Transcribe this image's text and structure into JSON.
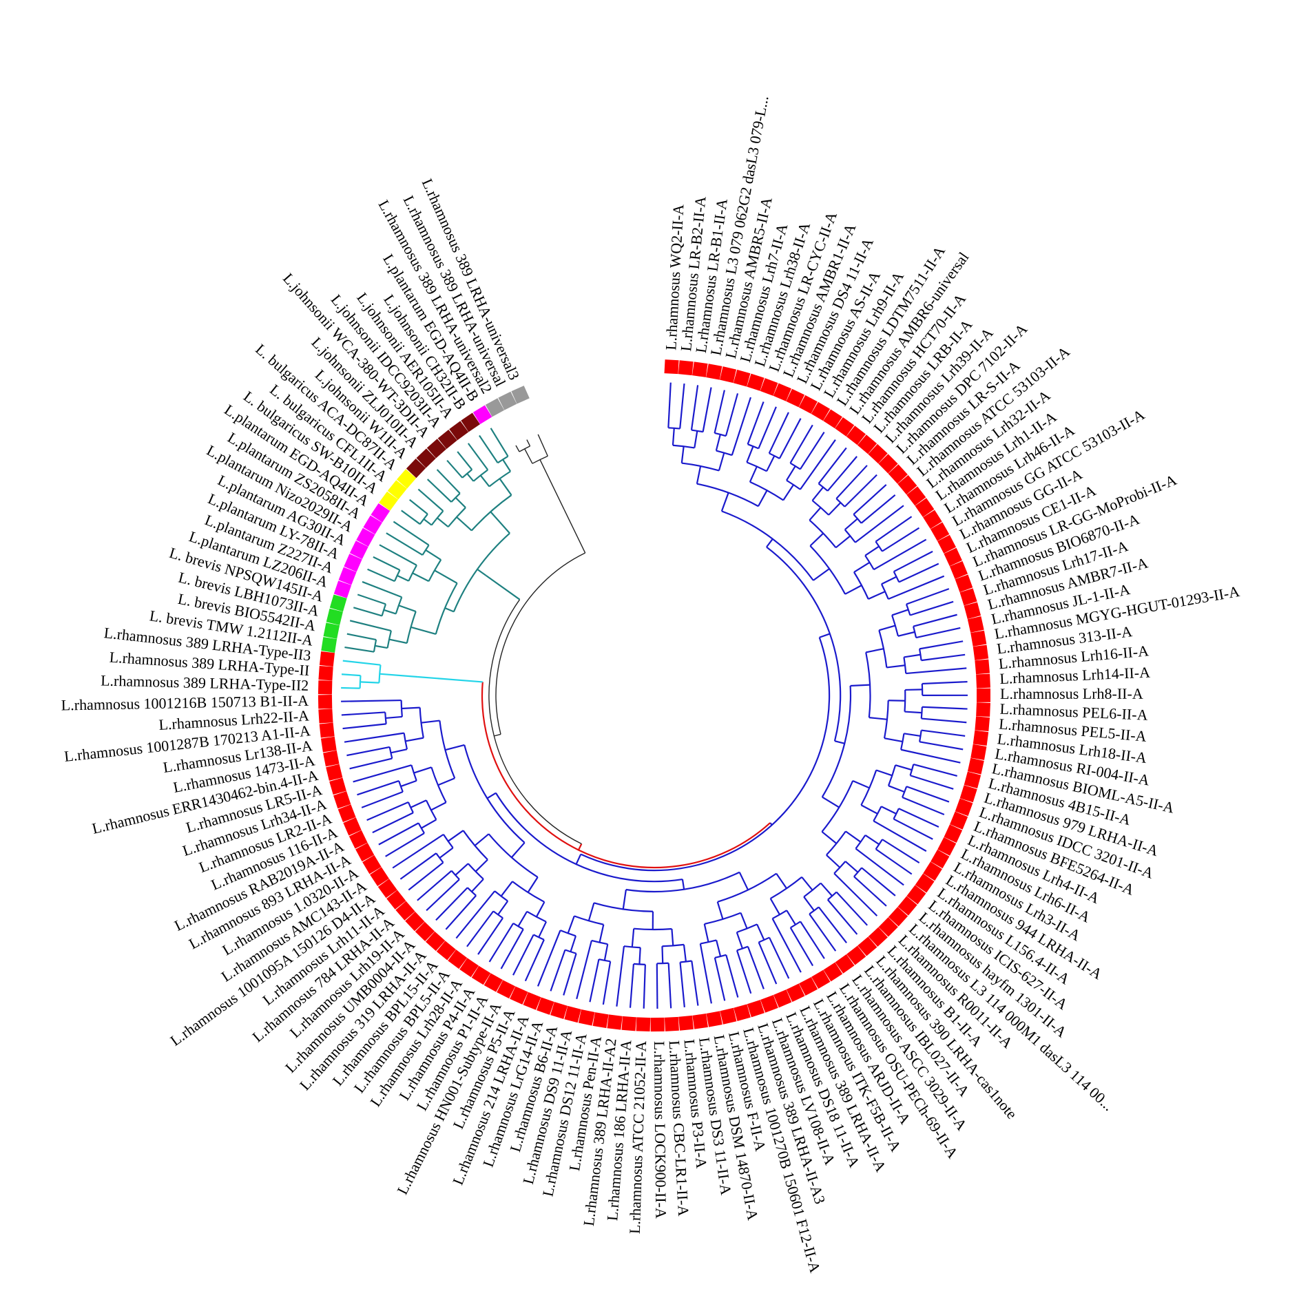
{
  "colors": {
    "rhamnosus_clade": "#1a1acc",
    "outgroup_clade": "#1e8080",
    "type_ii_clade": "#22d4e8",
    "root_segment": "#e01010",
    "universal_clade": "#222222",
    "tip_default": "#ff0000"
  },
  "legend_colors": {
    "rhamnosus": "#ff0000",
    "universal": "#999999",
    "plantarum_egd": "#ff00ff",
    "johnsonii": "#7a0a0a",
    "bulgaricus": "#ffff00",
    "plantarum": "#ff00ff",
    "brevis": "#22dd22"
  },
  "leaves": [
    {
      "label": "L.rhamnosus WQ2-II-A",
      "color": "#ff0000",
      "clade": "main"
    },
    {
      "label": "L.rhamnosus LR-B2-II-A",
      "color": "#ff0000",
      "clade": "main"
    },
    {
      "label": "L.rhamnosus LR-B1-II-A",
      "color": "#ff0000",
      "clade": "main"
    },
    {
      "label": "L.rhamnosus L3 079 062G2 dasL3 079-L...",
      "color": "#ff0000",
      "clade": "main"
    },
    {
      "label": "L.rhamnosus AMBR5-II-A",
      "color": "#ff0000",
      "clade": "main"
    },
    {
      "label": "L.rhamnosus Lrh7-II-A",
      "color": "#ff0000",
      "clade": "main"
    },
    {
      "label": "L.rhamnosus Lrh38-II-A",
      "color": "#ff0000",
      "clade": "main"
    },
    {
      "label": "L.rhamnosus LR-CYC-II-A",
      "color": "#ff0000",
      "clade": "main"
    },
    {
      "label": "L.rhamnosus AMBR1-II-A",
      "color": "#ff0000",
      "clade": "main"
    },
    {
      "label": "L.rhamnosus DS4 11-II-A",
      "color": "#ff0000",
      "clade": "main"
    },
    {
      "label": "L.rhamnosus AS-II-A",
      "color": "#ff0000",
      "clade": "main"
    },
    {
      "label": "L.rhamnosus Lrh9-II-A",
      "color": "#ff0000",
      "clade": "main"
    },
    {
      "label": "L.rhamnosus LDTM7511-II-A",
      "color": "#ff0000",
      "clade": "main"
    },
    {
      "label": "L.rhamnosus AMBR6-universal",
      "color": "#ff0000",
      "clade": "main"
    },
    {
      "label": "L.rhamnosus HCT70-II-A",
      "color": "#ff0000",
      "clade": "main"
    },
    {
      "label": "L.rhamnosus LRB-II-A",
      "color": "#ff0000",
      "clade": "main"
    },
    {
      "label": "L.rhamnosus Lrh39-II-A",
      "color": "#ff0000",
      "clade": "main"
    },
    {
      "label": "L.rhamnosus DPC 7102-II-A",
      "color": "#ff0000",
      "clade": "main"
    },
    {
      "label": "L.rhamnosus LR-S-II-A",
      "color": "#ff0000",
      "clade": "main"
    },
    {
      "label": "L.rhamnosus ATCC 53103-II-A",
      "color": "#ff0000",
      "clade": "main"
    },
    {
      "label": "L.rhamnosus Lrh32-II-A",
      "color": "#ff0000",
      "clade": "main"
    },
    {
      "label": "L.rhamnosus Lrh1-II-A",
      "color": "#ff0000",
      "clade": "main"
    },
    {
      "label": "L.rhamnosus Lrh46-II-A",
      "color": "#ff0000",
      "clade": "main"
    },
    {
      "label": "L.rhamnosus GG ATCC 53103-II-A",
      "color": "#ff0000",
      "clade": "main"
    },
    {
      "label": "L.rhamnosus GG-II-A",
      "color": "#ff0000",
      "clade": "main"
    },
    {
      "label": "L.rhamnosus CE1-II-A",
      "color": "#ff0000",
      "clade": "main"
    },
    {
      "label": "L.rhamnosus LR-GG-MoProbi-II-A",
      "color": "#ff0000",
      "clade": "main"
    },
    {
      "label": "L.rhamnosus BIO6870-II-A",
      "color": "#ff0000",
      "clade": "main"
    },
    {
      "label": "L.rhamnosus Lrh17-II-A",
      "color": "#ff0000",
      "clade": "main"
    },
    {
      "label": "L.rhamnosus AMBR7-II-A",
      "color": "#ff0000",
      "clade": "main"
    },
    {
      "label": "L.rhamnosus JL-1-II-A",
      "color": "#ff0000",
      "clade": "main"
    },
    {
      "label": "L.rhamnosus MGYG-HGUT-01293-II-A",
      "color": "#ff0000",
      "clade": "main"
    },
    {
      "label": "L.rhamnosus 313-II-A",
      "color": "#ff0000",
      "clade": "main"
    },
    {
      "label": "L.rhamnosus Lrh16-II-A",
      "color": "#ff0000",
      "clade": "main"
    },
    {
      "label": "L.rhamnosus Lrh14-II-A",
      "color": "#ff0000",
      "clade": "main"
    },
    {
      "label": "L.rhamnosus Lrh8-II-A",
      "color": "#ff0000",
      "clade": "main"
    },
    {
      "label": "L.rhamnosus PEL6-II-A",
      "color": "#ff0000",
      "clade": "main"
    },
    {
      "label": "L.rhamnosus PEL5-II-A",
      "color": "#ff0000",
      "clade": "main"
    },
    {
      "label": "L.rhamnosus Lrh18-II-A",
      "color": "#ff0000",
      "clade": "main"
    },
    {
      "label": "L.rhamnosus RI-004-II-A",
      "color": "#ff0000",
      "clade": "main"
    },
    {
      "label": "L.rhamnosus BIOML-A5-II-A",
      "color": "#ff0000",
      "clade": "main"
    },
    {
      "label": "L.rhamnosus 4B15-II-A",
      "color": "#ff0000",
      "clade": "main"
    },
    {
      "label": "L.rhamnosus 979 LRHA-II-A",
      "color": "#ff0000",
      "clade": "main"
    },
    {
      "label": "L.rhamnosus IDCC 3201-II-A",
      "color": "#ff0000",
      "clade": "main"
    },
    {
      "label": "L.rhamnosus BFE5264-II-A",
      "color": "#ff0000",
      "clade": "main"
    },
    {
      "label": "L.rhamnosus Lrh4-II-A",
      "color": "#ff0000",
      "clade": "main"
    },
    {
      "label": "L.rhamnosus Lrh6-II-A",
      "color": "#ff0000",
      "clade": "main"
    },
    {
      "label": "L.rhamnosus Lrh3-II-A",
      "color": "#ff0000",
      "clade": "main"
    },
    {
      "label": "L.rhamnosus 944 LRHA-II-A",
      "color": "#ff0000",
      "clade": "main"
    },
    {
      "label": "L.rhamnosus L156.4-II-A",
      "color": "#ff0000",
      "clade": "main"
    },
    {
      "label": "L.rhamnosus ICIS-627-II-A",
      "color": "#ff0000",
      "clade": "main"
    },
    {
      "label": "L.rhamnosus hayfm 1301-II-A",
      "color": "#ff0000",
      "clade": "main"
    },
    {
      "label": "L.rhamnosus L3 114 000M1 dasL3 114 00...",
      "color": "#ff0000",
      "clade": "main"
    },
    {
      "label": "L.rhamnosus R0011-II-A",
      "color": "#ff0000",
      "clade": "main"
    },
    {
      "label": "L.rhamnosus B1-II-A",
      "color": "#ff0000",
      "clade": "main"
    },
    {
      "label": "L.rhamnosus 390 LRHA-cas1note",
      "color": "#ff0000",
      "clade": "main"
    },
    {
      "label": "L.rhamnosus IBL027-II-A",
      "color": "#ff0000",
      "clade": "main"
    },
    {
      "label": "L.rhamnosus ASCC 3029-II-A",
      "color": "#ff0000",
      "clade": "main"
    },
    {
      "label": "L.rhamnosus OSU-PECh-69-II-A",
      "color": "#ff0000",
      "clade": "main"
    },
    {
      "label": "L.rhamnosus ARJD-II-A",
      "color": "#ff0000",
      "clade": "main"
    },
    {
      "label": "L.rhamnosus ITK-F5B-II-A",
      "color": "#ff0000",
      "clade": "main"
    },
    {
      "label": "L.rhamnosus 389 LRHA-II-A",
      "color": "#ff0000",
      "clade": "main"
    },
    {
      "label": "L.rhamnosus DS18 11-II-A",
      "color": "#ff0000",
      "clade": "main"
    },
    {
      "label": "L.rhamnosus LV108-II-A",
      "color": "#ff0000",
      "clade": "main"
    },
    {
      "label": "L.rhamnosus 389 LRHA-II-A3",
      "color": "#ff0000",
      "clade": "main"
    },
    {
      "label": "L.rhamnosus 1001270B 150601 F12-II-A",
      "color": "#ff0000",
      "clade": "main"
    },
    {
      "label": "L.rhamnosus F-II-A",
      "color": "#ff0000",
      "clade": "main"
    },
    {
      "label": "L.rhamnosus DSM 14870-II-A",
      "color": "#ff0000",
      "clade": "main"
    },
    {
      "label": "L.rhamnosus DS3 11-II-A",
      "color": "#ff0000",
      "clade": "main"
    },
    {
      "label": "L.rhamnosus P3-II-A",
      "color": "#ff0000",
      "clade": "main"
    },
    {
      "label": "L.rhamnosus CBC-LR1-II-A",
      "color": "#ff0000",
      "clade": "main"
    },
    {
      "label": "L.rhamnosus LOCK900-II-A",
      "color": "#ff0000",
      "clade": "main"
    },
    {
      "label": "L.rhamnosus ATCC 21052-II-A",
      "color": "#ff0000",
      "clade": "main"
    },
    {
      "label": "L.rhamnosus 186 LRHA-II-A",
      "color": "#ff0000",
      "clade": "main"
    },
    {
      "label": "L.rhamnosus 389 LRHA-II-A2",
      "color": "#ff0000",
      "clade": "main"
    },
    {
      "label": "L.rhamnosus Pen-II-A",
      "color": "#ff0000",
      "clade": "main"
    },
    {
      "label": "L.rhamnosus DS12 11-II-A",
      "color": "#ff0000",
      "clade": "main"
    },
    {
      "label": "L.rhamnosus DS9 11-II-A",
      "color": "#ff0000",
      "clade": "main"
    },
    {
      "label": "L.rhamnosus B6-II-A",
      "color": "#ff0000",
      "clade": "main"
    },
    {
      "label": "L.rhamnosus LrG14-II-A",
      "color": "#ff0000",
      "clade": "main"
    },
    {
      "label": "L.rhamnosus 214 LRHA-II-A",
      "color": "#ff0000",
      "clade": "main"
    },
    {
      "label": "L.rhamnosus P5-II-A",
      "color": "#ff0000",
      "clade": "main"
    },
    {
      "label": "L.rhamnosus HN001-Subtype-II-A",
      "color": "#ff0000",
      "clade": "main"
    },
    {
      "label": "L.rhamnosus P1-II-A",
      "color": "#ff0000",
      "clade": "main"
    },
    {
      "label": "L.rhamnosus P4-II-A",
      "color": "#ff0000",
      "clade": "main"
    },
    {
      "label": "L.rhamnosus Lrh28-II-A",
      "color": "#ff0000",
      "clade": "main"
    },
    {
      "label": "L.rhamnosus BPL5-II-A",
      "color": "#ff0000",
      "clade": "main"
    },
    {
      "label": "L.rhamnosus BPL15-II-A",
      "color": "#ff0000",
      "clade": "main"
    },
    {
      "label": "L.rhamnosus 319 LRHA-II-A",
      "color": "#ff0000",
      "clade": "main"
    },
    {
      "label": "L.rhamnosus UMB0004-II-A",
      "color": "#ff0000",
      "clade": "main"
    },
    {
      "label": "L.rhamnosus Lrh19-II-A",
      "color": "#ff0000",
      "clade": "main"
    },
    {
      "label": "L.rhamnosus 784 LRHA-II-A",
      "color": "#ff0000",
      "clade": "main"
    },
    {
      "label": "L.rhamnosus Lrh11-II-A",
      "color": "#ff0000",
      "clade": "main"
    },
    {
      "label": "L.rhamnosus 1001095A 150126 D4-II-A",
      "color": "#ff0000",
      "clade": "main"
    },
    {
      "label": "L.rhamnosus AMC143-II-A",
      "color": "#ff0000",
      "clade": "main"
    },
    {
      "label": "L.rhamnosus 1.0320-II-A",
      "color": "#ff0000",
      "clade": "main"
    },
    {
      "label": "L.rhamnosus 893 LRHA-II-A",
      "color": "#ff0000",
      "clade": "main"
    },
    {
      "label": "L.rhamnosus RAB2019A-II-A",
      "color": "#ff0000",
      "clade": "main"
    },
    {
      "label": "L.rhamnosus 116-II-A",
      "color": "#ff0000",
      "clade": "main"
    },
    {
      "label": "L.rhamnosus LR2-II-A",
      "color": "#ff0000",
      "clade": "main"
    },
    {
      "label": "L.rhamnosus Lrh34-II-A",
      "color": "#ff0000",
      "clade": "main"
    },
    {
      "label": "L.rhamnosus LR5-II-A",
      "color": "#ff0000",
      "clade": "main"
    },
    {
      "label": "L.rhamnosus ERR1430462-bin.4-II-A",
      "color": "#ff0000",
      "clade": "main"
    },
    {
      "label": "L.rhamnosus 1473-II-A",
      "color": "#ff0000",
      "clade": "main"
    },
    {
      "label": "L.rhamnosus Lr138-II-A",
      "color": "#ff0000",
      "clade": "main"
    },
    {
      "label": "L.rhamnosus 1001287B 170213 A1-II-A",
      "color": "#ff0000",
      "clade": "main"
    },
    {
      "label": "L.rhamnosus Lrh22-II-A",
      "color": "#ff0000",
      "clade": "main"
    },
    {
      "label": "L.rhamnosus 1001216B 150713 B1-II-A",
      "color": "#ff0000",
      "clade": "main"
    },
    {
      "label": "L.rhamnosus 389 LRHA-Type-II2",
      "color": "#ff0000",
      "clade": "typeii"
    },
    {
      "label": "L.rhamnosus 389 LRHA-Type-II",
      "color": "#ff0000",
      "clade": "typeii"
    },
    {
      "label": "L.rhamnosus 389 LRHA-Type-II3",
      "color": "#ff0000",
      "clade": "typeii"
    },
    {
      "label": "L. brevis TMW 1.2112II-A",
      "color": "#22dd22",
      "clade": "outgroup"
    },
    {
      "label": "L. brevis BIO5542II-A",
      "color": "#22dd22",
      "clade": "outgroup"
    },
    {
      "label": "L. brevis LBH1073II-A",
      "color": "#22dd22",
      "clade": "outgroup"
    },
    {
      "label": "L. brevis NPSQW145II-A",
      "color": "#22dd22",
      "clade": "outgroup"
    },
    {
      "label": "L.plantarum LZ206II-A",
      "color": "#ff00ff",
      "clade": "outgroup"
    },
    {
      "label": "L.plantarum Z227II-A",
      "color": "#ff00ff",
      "clade": "outgroup"
    },
    {
      "label": "L.plantarum LY-78II-A",
      "color": "#ff00ff",
      "clade": "outgroup"
    },
    {
      "label": "L.plantarum AG30II-A",
      "color": "#ff00ff",
      "clade": "outgroup"
    },
    {
      "label": "L.plantarum Nizo2029II-A",
      "color": "#ff00ff",
      "clade": "outgroup"
    },
    {
      "label": "L.plantarum ZS2058II-A",
      "color": "#ff00ff",
      "clade": "outgroup"
    },
    {
      "label": "L.plantarum EGD-AQ4II-A",
      "color": "#ff00ff",
      "clade": "outgroup"
    },
    {
      "label": "L. bulgaricus SW-B10II-A",
      "color": "#ffff00",
      "clade": "outgroup"
    },
    {
      "label": "L. bulgaricus CFL1II-A",
      "color": "#ffff00",
      "clade": "outgroup"
    },
    {
      "label": "L. bulgaricus ACA-DC87II-A",
      "color": "#ffff00",
      "clade": "outgroup"
    },
    {
      "label": "L.johnsonii W1II-A",
      "color": "#7a0a0a",
      "clade": "outgroup"
    },
    {
      "label": "L.johnsonii ZLJ010II-A",
      "color": "#7a0a0a",
      "clade": "outgroup"
    },
    {
      "label": "L.johnsonii WCA-380-WT-3DII-A",
      "color": "#7a0a0a",
      "clade": "outgroup"
    },
    {
      "label": "L.johnsonii IDCC9203II-A",
      "color": "#7a0a0a",
      "clade": "outgroup"
    },
    {
      "label": "L.johnsonii AER105II-A",
      "color": "#7a0a0a",
      "clade": "outgroup"
    },
    {
      "label": "L.johnsonii CH32II-B",
      "color": "#7a0a0a",
      "clade": "outgroup"
    },
    {
      "label": "L.plantarum EGD-AQ4II-B",
      "color": "#ff00ff",
      "clade": "outgroup"
    },
    {
      "label": "L.rhamnosus 389 LRHA-universal2",
      "color": "#999999",
      "clade": "universal"
    },
    {
      "label": "L.rhamnosus 389 LRHA-universal",
      "color": "#999999",
      "clade": "universal"
    },
    {
      "label": "L.rhamnosus 389 LRHA-universal3",
      "color": "#999999",
      "clade": "universal"
    }
  ]
}
